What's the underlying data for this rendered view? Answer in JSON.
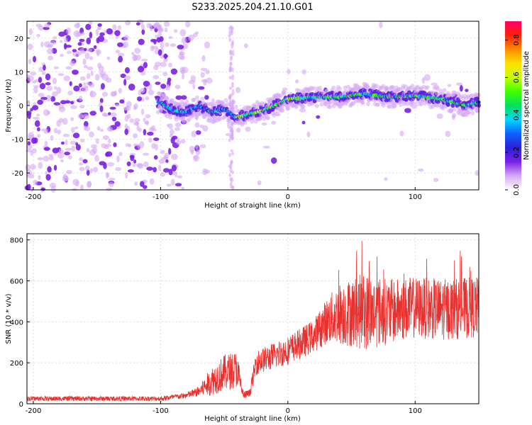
{
  "page": {
    "title": "S233.2025.204.21.10.G01"
  },
  "chart_data": [
    {
      "type": "heatmap",
      "title": "S233.2025.204.21.10.G01",
      "xlabel": "Height of straight line (km)",
      "ylabel": "Frequency (Hz)",
      "xlim": [
        -205,
        150
      ],
      "ylim": [
        -25,
        25
      ],
      "xticks": [
        -200,
        -100,
        0,
        100
      ],
      "yticks": [
        -20,
        -10,
        0,
        10,
        20
      ],
      "grid": true,
      "colorbar": {
        "label": "Normalized spectral amplitude",
        "range": [
          0.0,
          0.9
        ],
        "ticks": [
          0.0,
          0.2,
          0.4,
          0.6,
          0.8
        ],
        "colors": [
          "#ffffff",
          "#d6a8f5",
          "#7a20e6",
          "#2a20d8",
          "#1060ff",
          "#00d8ff",
          "#00e060",
          "#40ff00",
          "#c8ff00",
          "#ffe000",
          "#ff8c00",
          "#ff2000",
          "#ff0070"
        ]
      },
      "ridge": {
        "description_points": [
          {
            "x": -100,
            "y": 1.0
          },
          {
            "x": -90,
            "y": -1.5
          },
          {
            "x": -80,
            "y": -2.0
          },
          {
            "x": -70,
            "y": 0.0
          },
          {
            "x": -60,
            "y": -2.0
          },
          {
            "x": -50,
            "y": -1.0
          },
          {
            "x": -40,
            "y": -3.5
          },
          {
            "x": -30,
            "y": -2.5
          },
          {
            "x": -20,
            "y": -1.5
          },
          {
            "x": -10,
            "y": 0.0
          },
          {
            "x": 0,
            "y": 2.0
          },
          {
            "x": 20,
            "y": 2.5
          },
          {
            "x": 40,
            "y": 2.5
          },
          {
            "x": 60,
            "y": 3.5
          },
          {
            "x": 80,
            "y": 2.5
          },
          {
            "x": 100,
            "y": 3.0
          },
          {
            "x": 120,
            "y": 2.0
          },
          {
            "x": 140,
            "y": 0.0
          },
          {
            "x": 150,
            "y": 1.0
          }
        ]
      }
    },
    {
      "type": "line",
      "xlabel": "Height of straight line (km)",
      "ylabel": "SNR (10 * v/v)",
      "xlim": [
        -205,
        150
      ],
      "ylim": [
        0,
        830
      ],
      "xticks": [
        -200,
        -100,
        0,
        100
      ],
      "yticks": [
        0,
        200,
        400,
        600,
        800
      ],
      "grid": true,
      "line_color": "#e8302e",
      "series": [
        {
          "envelope": [
            {
              "x": -205,
              "mean": 25,
              "spread": 12
            },
            {
              "x": -150,
              "mean": 25,
              "spread": 12
            },
            {
              "x": -100,
              "mean": 25,
              "spread": 12
            },
            {
              "x": -80,
              "mean": 40,
              "spread": 15
            },
            {
              "x": -70,
              "mean": 60,
              "spread": 25
            },
            {
              "x": -60,
              "mean": 110,
              "spread": 70
            },
            {
              "x": -50,
              "mean": 150,
              "spread": 90
            },
            {
              "x": -40,
              "mean": 170,
              "spread": 90
            },
            {
              "x": -35,
              "mean": 40,
              "spread": 20
            },
            {
              "x": -30,
              "mean": 50,
              "spread": 20
            },
            {
              "x": -25,
              "mean": 200,
              "spread": 60
            },
            {
              "x": 0,
              "mean": 260,
              "spread": 70
            },
            {
              "x": 20,
              "mean": 330,
              "spread": 80
            },
            {
              "x": 30,
              "mean": 400,
              "spread": 110
            },
            {
              "x": 40,
              "mean": 440,
              "spread": 150
            },
            {
              "x": 60,
              "mean": 450,
              "spread": 190
            },
            {
              "x": 80,
              "mean": 450,
              "spread": 160
            },
            {
              "x": 100,
              "mean": 470,
              "spread": 150
            },
            {
              "x": 120,
              "mean": 460,
              "spread": 150
            },
            {
              "x": 150,
              "mean": 470,
              "spread": 150
            }
          ]
        }
      ]
    }
  ]
}
